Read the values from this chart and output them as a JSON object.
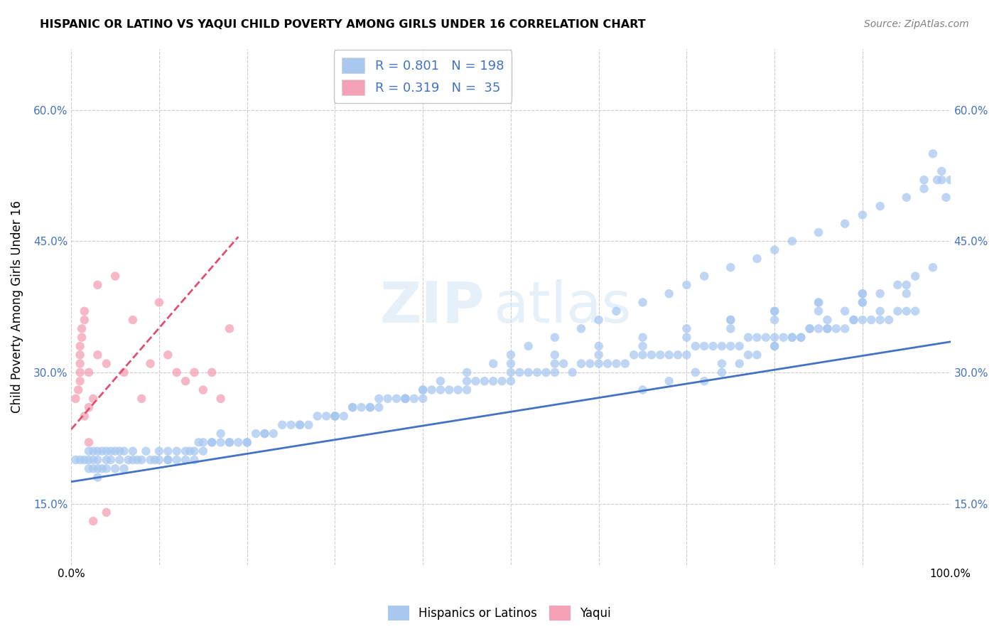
{
  "title": "HISPANIC OR LATINO VS YAQUI CHILD POVERTY AMONG GIRLS UNDER 16 CORRELATION CHART",
  "source": "Source: ZipAtlas.com",
  "ylabel": "Child Poverty Among Girls Under 16",
  "watermark_zip": "ZIP",
  "watermark_atlas": "atlas",
  "xlim_min": 0.0,
  "xlim_max": 1.0,
  "ylim_min": 0.08,
  "ylim_max": 0.67,
  "xtick_positions": [
    0.0,
    0.1,
    0.2,
    0.3,
    0.4,
    0.5,
    0.6,
    0.7,
    0.8,
    0.9,
    1.0
  ],
  "xticklabels": [
    "0.0%",
    "",
    "",
    "",
    "",
    "",
    "",
    "",
    "",
    "",
    "100.0%"
  ],
  "ytick_positions": [
    0.15,
    0.3,
    0.45,
    0.6
  ],
  "yticklabels": [
    "15.0%",
    "30.0%",
    "45.0%",
    "60.0%"
  ],
  "blue_color": "#a8c8f0",
  "pink_color": "#f4a0b5",
  "line_blue": "#4472c4",
  "line_pink": "#e05070",
  "text_blue": "#4472c4",
  "background_color": "#ffffff",
  "grid_color": "#cccccc",
  "blue_scatter_x": [
    0.005,
    0.01,
    0.015,
    0.02,
    0.02,
    0.02,
    0.025,
    0.025,
    0.025,
    0.03,
    0.03,
    0.03,
    0.03,
    0.035,
    0.035,
    0.04,
    0.04,
    0.04,
    0.045,
    0.045,
    0.05,
    0.05,
    0.055,
    0.055,
    0.06,
    0.06,
    0.065,
    0.07,
    0.07,
    0.075,
    0.08,
    0.085,
    0.09,
    0.095,
    0.1,
    0.1,
    0.11,
    0.11,
    0.12,
    0.12,
    0.13,
    0.135,
    0.14,
    0.145,
    0.15,
    0.16,
    0.17,
    0.17,
    0.18,
    0.19,
    0.2,
    0.21,
    0.22,
    0.23,
    0.24,
    0.25,
    0.26,
    0.27,
    0.28,
    0.29,
    0.3,
    0.31,
    0.32,
    0.33,
    0.34,
    0.35,
    0.36,
    0.37,
    0.38,
    0.39,
    0.4,
    0.41,
    0.42,
    0.43,
    0.44,
    0.45,
    0.46,
    0.47,
    0.48,
    0.49,
    0.5,
    0.51,
    0.52,
    0.53,
    0.54,
    0.55,
    0.56,
    0.57,
    0.58,
    0.59,
    0.6,
    0.61,
    0.62,
    0.63,
    0.64,
    0.65,
    0.66,
    0.67,
    0.68,
    0.69,
    0.7,
    0.71,
    0.72,
    0.73,
    0.74,
    0.75,
    0.76,
    0.77,
    0.78,
    0.79,
    0.8,
    0.81,
    0.82,
    0.83,
    0.84,
    0.85,
    0.86,
    0.87,
    0.88,
    0.89,
    0.9,
    0.91,
    0.92,
    0.93,
    0.94,
    0.95,
    0.96,
    0.97,
    0.98,
    0.985,
    0.99,
    0.995,
    1.0,
    0.3,
    0.32,
    0.35,
    0.38,
    0.4,
    0.42,
    0.45,
    0.48,
    0.5,
    0.52,
    0.55,
    0.58,
    0.6,
    0.62,
    0.65,
    0.68,
    0.7,
    0.72,
    0.75,
    0.78,
    0.8,
    0.82,
    0.85,
    0.88,
    0.9,
    0.92,
    0.95,
    0.97,
    0.99,
    0.5,
    0.55,
    0.6,
    0.65,
    0.7,
    0.75,
    0.8,
    0.85,
    0.9,
    0.95,
    0.4,
    0.45,
    0.5,
    0.55,
    0.6,
    0.65,
    0.7,
    0.75,
    0.8,
    0.85,
    0.9,
    0.95,
    0.75,
    0.8,
    0.85,
    0.9,
    0.72,
    0.74,
    0.76,
    0.78,
    0.8,
    0.82,
    0.84,
    0.86,
    0.88,
    0.9,
    0.92,
    0.94,
    0.96,
    0.98,
    0.65,
    0.68,
    0.71,
    0.74,
    0.77,
    0.8,
    0.83,
    0.86,
    0.89,
    0.92,
    0.18,
    0.22,
    0.26,
    0.3,
    0.34,
    0.38,
    0.15,
    0.2,
    0.11,
    0.13,
    0.14,
    0.16
  ],
  "blue_scatter_y": [
    0.2,
    0.2,
    0.2,
    0.19,
    0.2,
    0.21,
    0.19,
    0.2,
    0.21,
    0.18,
    0.19,
    0.2,
    0.21,
    0.19,
    0.21,
    0.19,
    0.2,
    0.21,
    0.2,
    0.21,
    0.19,
    0.21,
    0.2,
    0.21,
    0.19,
    0.21,
    0.2,
    0.2,
    0.21,
    0.2,
    0.2,
    0.21,
    0.2,
    0.2,
    0.2,
    0.21,
    0.2,
    0.21,
    0.2,
    0.21,
    0.2,
    0.21,
    0.21,
    0.22,
    0.21,
    0.22,
    0.22,
    0.23,
    0.22,
    0.22,
    0.22,
    0.23,
    0.23,
    0.23,
    0.24,
    0.24,
    0.24,
    0.24,
    0.25,
    0.25,
    0.25,
    0.25,
    0.26,
    0.26,
    0.26,
    0.27,
    0.27,
    0.27,
    0.27,
    0.27,
    0.27,
    0.28,
    0.28,
    0.28,
    0.28,
    0.28,
    0.29,
    0.29,
    0.29,
    0.29,
    0.29,
    0.3,
    0.3,
    0.3,
    0.3,
    0.3,
    0.31,
    0.3,
    0.31,
    0.31,
    0.31,
    0.31,
    0.31,
    0.31,
    0.32,
    0.32,
    0.32,
    0.32,
    0.32,
    0.32,
    0.32,
    0.33,
    0.33,
    0.33,
    0.33,
    0.33,
    0.33,
    0.34,
    0.34,
    0.34,
    0.34,
    0.34,
    0.34,
    0.34,
    0.35,
    0.35,
    0.35,
    0.35,
    0.35,
    0.36,
    0.36,
    0.36,
    0.36,
    0.36,
    0.37,
    0.37,
    0.37,
    0.52,
    0.55,
    0.52,
    0.53,
    0.5,
    0.52,
    0.25,
    0.26,
    0.26,
    0.27,
    0.28,
    0.29,
    0.3,
    0.31,
    0.32,
    0.33,
    0.34,
    0.35,
    0.36,
    0.37,
    0.38,
    0.39,
    0.4,
    0.41,
    0.42,
    0.43,
    0.44,
    0.45,
    0.46,
    0.47,
    0.48,
    0.49,
    0.5,
    0.51,
    0.52,
    0.31,
    0.32,
    0.33,
    0.34,
    0.35,
    0.36,
    0.37,
    0.38,
    0.39,
    0.4,
    0.28,
    0.29,
    0.3,
    0.31,
    0.32,
    0.33,
    0.34,
    0.35,
    0.36,
    0.37,
    0.38,
    0.39,
    0.36,
    0.37,
    0.38,
    0.39,
    0.29,
    0.3,
    0.31,
    0.32,
    0.33,
    0.34,
    0.35,
    0.36,
    0.37,
    0.38,
    0.39,
    0.4,
    0.41,
    0.42,
    0.28,
    0.29,
    0.3,
    0.31,
    0.32,
    0.33,
    0.34,
    0.35,
    0.36,
    0.37,
    0.22,
    0.23,
    0.24,
    0.25,
    0.26,
    0.27,
    0.22,
    0.22,
    0.2,
    0.21,
    0.2,
    0.22
  ],
  "pink_scatter_x": [
    0.005,
    0.008,
    0.01,
    0.01,
    0.01,
    0.01,
    0.01,
    0.012,
    0.012,
    0.015,
    0.015,
    0.015,
    0.02,
    0.02,
    0.02,
    0.025,
    0.025,
    0.03,
    0.03,
    0.04,
    0.04,
    0.05,
    0.06,
    0.07,
    0.08,
    0.09,
    0.1,
    0.11,
    0.12,
    0.13,
    0.14,
    0.15,
    0.16,
    0.17,
    0.18
  ],
  "pink_scatter_y": [
    0.27,
    0.28,
    0.29,
    0.3,
    0.31,
    0.32,
    0.33,
    0.34,
    0.35,
    0.36,
    0.37,
    0.25,
    0.26,
    0.22,
    0.3,
    0.13,
    0.27,
    0.4,
    0.32,
    0.14,
    0.31,
    0.41,
    0.3,
    0.36,
    0.27,
    0.31,
    0.38,
    0.32,
    0.3,
    0.29,
    0.3,
    0.28,
    0.3,
    0.27,
    0.35
  ],
  "blue_line_x": [
    0.0,
    1.0
  ],
  "blue_line_y": [
    0.175,
    0.335
  ],
  "pink_line_x": [
    0.0,
    0.19
  ],
  "pink_line_y": [
    0.235,
    0.455
  ]
}
